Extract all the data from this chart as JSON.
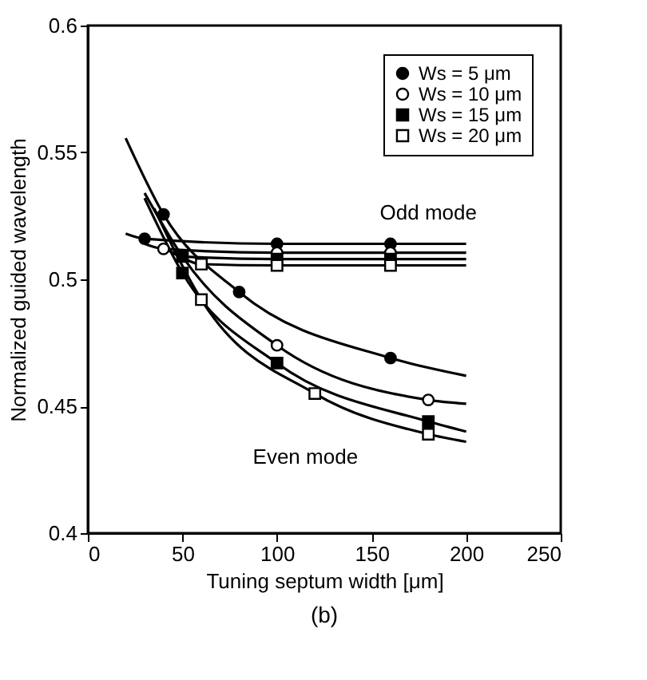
{
  "chart_data": {
    "type": "line",
    "xlabel": "Tuning septum width  [μm]",
    "ylabel": "Normalized guided wavelength",
    "xlim": [
      0,
      250
    ],
    "xticks": [
      0,
      50,
      100,
      150,
      200,
      250
    ],
    "ylim": [
      0.4,
      0.6
    ],
    "yticks": [
      0.4,
      0.45,
      0.5,
      0.55,
      0.6
    ],
    "grid": false,
    "legend": "top right",
    "series": [
      {
        "marker": "none",
        "color": "#000000",
        "x": [
          20,
          40,
          80,
          160,
          200
        ],
        "values": [
          0.5556,
          0.5256,
          0.495,
          0.469,
          0.462
        ]
      },
      {
        "marker": "none",
        "color": "#000000",
        "x": [
          30,
          50,
          100,
          180,
          200
        ],
        "values": [
          0.534,
          0.509,
          0.474,
          0.4525,
          0.451
        ]
      },
      {
        "marker": "none",
        "color": "#000000",
        "x": [
          30,
          50,
          100,
          180,
          200
        ],
        "values": [
          0.532,
          0.5025,
          0.467,
          0.444,
          0.44
        ]
      },
      {
        "marker": "none",
        "color": "#000000",
        "x": [
          35,
          60,
          120,
          180,
          200
        ],
        "values": [
          0.528,
          0.492,
          0.455,
          0.439,
          0.436
        ]
      },
      {
        "marker": "none",
        "color": "#000000",
        "x": [
          20,
          30,
          100,
          160,
          200
        ],
        "values": [
          0.518,
          0.516,
          0.514,
          0.514,
          0.514
        ]
      },
      {
        "marker": "none",
        "color": "#000000",
        "x": [
          30,
          40,
          100,
          160,
          200
        ],
        "values": [
          0.514,
          0.512,
          0.5105,
          0.5105,
          0.5105
        ]
      },
      {
        "marker": "none",
        "color": "#000000",
        "x": [
          40,
          50,
          100,
          160,
          200
        ],
        "values": [
          0.513,
          0.509,
          0.508,
          0.508,
          0.508
        ]
      },
      {
        "marker": "none",
        "color": "#000000",
        "x": [
          45,
          60,
          100,
          160,
          200
        ],
        "values": [
          0.511,
          0.506,
          0.5055,
          0.5055,
          0.5055
        ]
      },
      {
        "type": "scatter",
        "name": "Ws = 5 μm",
        "marker": "circle",
        "color": "#000000",
        "x": [
          40,
          80,
          160,
          30,
          100,
          160
        ],
        "values": [
          0.5256,
          0.495,
          0.469,
          0.516,
          0.514,
          0.514
        ]
      },
      {
        "type": "scatter",
        "name": "Ws = 10 μm",
        "marker": "circle",
        "color": "#ffffff",
        "x": [
          100,
          180,
          40,
          100,
          160
        ],
        "values": [
          0.474,
          0.4525,
          0.512,
          0.5105,
          0.5105
        ]
      },
      {
        "type": "scatter",
        "name": "Ws = 15 μm",
        "marker": "square",
        "color": "#000000",
        "x": [
          50,
          100,
          180,
          50,
          100,
          160
        ],
        "values": [
          0.5025,
          0.467,
          0.444,
          0.509,
          0.508,
          0.508
        ]
      },
      {
        "type": "scatter",
        "name": "Ws = 20 μm",
        "marker": "square",
        "color": "#ffffff",
        "x": [
          60,
          120,
          180,
          60,
          100,
          160
        ],
        "values": [
          0.492,
          0.455,
          0.439,
          0.506,
          0.5055,
          0.5055
        ]
      }
    ],
    "annotations": [
      "Odd mode",
      "Even mode",
      "(b)"
    ]
  }
}
